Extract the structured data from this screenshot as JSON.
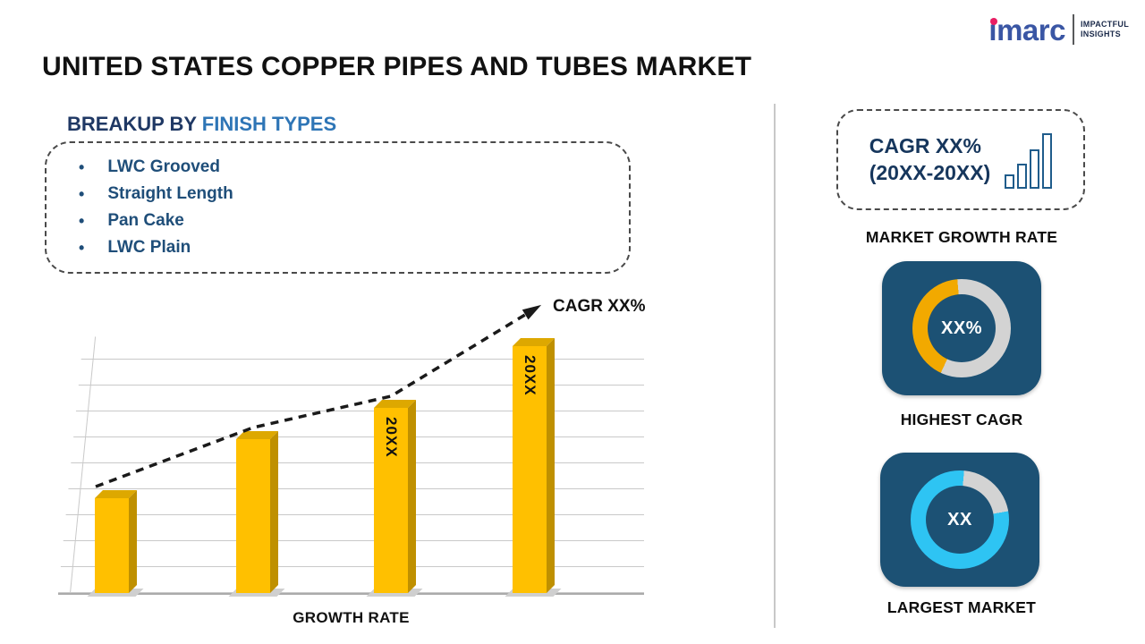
{
  "colors": {
    "bar_gold": "#FFC000",
    "bar_gold_side": "#BF9000",
    "donut_gold": "#F2A900",
    "donut_cyan": "#2EC4F3",
    "donut_gray": "#D3D3D3",
    "card_navy": "#1C5174",
    "heading_navy": "#1F3864",
    "heading_blue": "#2E75B6",
    "list_blue": "#1F4E79",
    "logo_blue": "#3A56A4",
    "logo_dot_pink": "#E91E63"
  },
  "header": {
    "title": "UNITED STATES COPPER PIPES AND TUBES MARKET",
    "logo": {
      "brand": "imarc",
      "tagline_line1": "IMPACTFUL",
      "tagline_line2": "INSIGHTS"
    }
  },
  "breakup": {
    "heading_prefix": "BREAKUP BY",
    "heading_highlight": "FINISH TYPES",
    "items": [
      "LWC Grooved",
      "Straight Length",
      "Pan Cake",
      "LWC Plain"
    ]
  },
  "chart_data": {
    "type": "bar",
    "categories": [
      "",
      "",
      "20XX",
      "20XX"
    ],
    "values": [
      37,
      60,
      72,
      96
    ],
    "bar_labels": [
      "",
      "",
      "20XX",
      "20XX"
    ],
    "title": "",
    "xlabel": "GROWTH RATE",
    "ylabel": "",
    "ylim": [
      0,
      100
    ],
    "grid": "horizontal",
    "annotation": "CAGR XX%",
    "trend": "dashed-arrow-upward",
    "bar_color": "#FFC000"
  },
  "sidebar": {
    "growth_card": {
      "line1": "CAGR XX%",
      "line2": "(20XX-20XX)",
      "label": "MARKET GROWTH RATE"
    },
    "highest_cagr": {
      "value": "XX%",
      "label": "HIGHEST CAGR",
      "arc_color": "#F2A900",
      "arc_start_deg": 205,
      "arc_sweep_deg": 150
    },
    "largest_market": {
      "value": "XX",
      "label": "LARGEST MARKET",
      "arc_color": "#2EC4F3",
      "arc_start_deg": 80,
      "arc_sweep_deg": 285
    }
  }
}
